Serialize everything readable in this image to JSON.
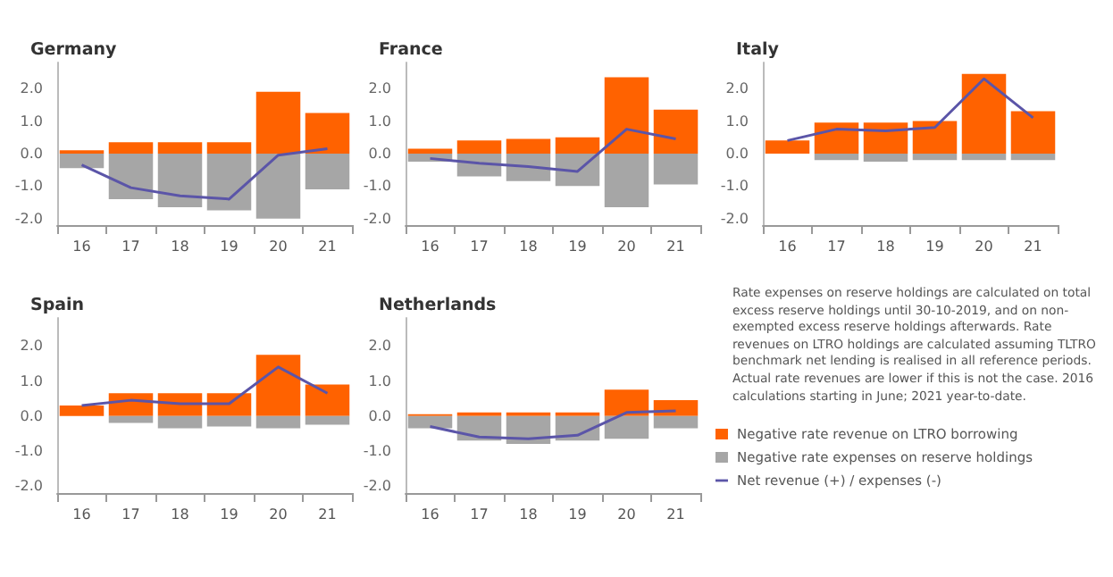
{
  "chart_data": [
    {
      "type": "bar",
      "title": "Germany",
      "stacked": true,
      "categories": [
        "16",
        "17",
        "18",
        "19",
        "20",
        "21"
      ],
      "ylim": [
        -2.2,
        2.8
      ],
      "yticks": [
        {
          "value": -2,
          "label": "-2.0"
        },
        {
          "value": -1,
          "label": "-1.0"
        },
        {
          "value": 0,
          "label": "0.0"
        },
        {
          "value": 1,
          "label": "1.0"
        },
        {
          "value": 2,
          "label": "2.0"
        }
      ],
      "grid": false,
      "legend": false,
      "series": [
        {
          "color": "#ff6200",
          "values": [
            0.1,
            0.35,
            0.35,
            0.35,
            1.9,
            1.25
          ]
        },
        {
          "color": "#a6a6a6",
          "values": [
            -0.45,
            -1.4,
            -1.65,
            -1.75,
            -2.0,
            -1.1
          ]
        },
        {
          "type": "line",
          "color": "#5b55a8",
          "values": [
            -0.35,
            -1.05,
            -1.3,
            -1.4,
            -0.05,
            0.15
          ]
        }
      ]
    },
    {
      "type": "bar",
      "title": "France",
      "stacked": true,
      "categories": [
        "16",
        "17",
        "18",
        "19",
        "20",
        "21"
      ],
      "ylim": [
        -2.2,
        2.8
      ],
      "yticks": [
        {
          "value": -2,
          "label": "-2.0"
        },
        {
          "value": -1,
          "label": "-1.0"
        },
        {
          "value": 0,
          "label": "0.0"
        },
        {
          "value": 1,
          "label": "1.0"
        },
        {
          "value": 2,
          "label": "2.0"
        }
      ],
      "grid": false,
      "legend": false,
      "series": [
        {
          "color": "#ff6200",
          "values": [
            0.15,
            0.4,
            0.45,
            0.5,
            2.35,
            1.35
          ]
        },
        {
          "color": "#a6a6a6",
          "values": [
            -0.25,
            -0.7,
            -0.85,
            -1.0,
            -1.65,
            -0.95
          ]
        },
        {
          "type": "line",
          "color": "#5b55a8",
          "values": [
            -0.15,
            -0.3,
            -0.4,
            -0.55,
            0.75,
            0.45
          ]
        }
      ]
    },
    {
      "type": "bar",
      "title": "Italy",
      "stacked": true,
      "categories": [
        "16",
        "17",
        "18",
        "19",
        "20",
        "21"
      ],
      "ylim": [
        -2.2,
        2.8
      ],
      "yticks": [
        {
          "value": -2,
          "label": "-2.0"
        },
        {
          "value": -1,
          "label": "-1.0"
        },
        {
          "value": 0,
          "label": "0.0"
        },
        {
          "value": 1,
          "label": "1.0"
        },
        {
          "value": 2,
          "label": "2.0"
        }
      ],
      "grid": false,
      "legend": false,
      "series": [
        {
          "color": "#ff6200",
          "values": [
            0.4,
            0.95,
            0.95,
            1.0,
            2.45,
            1.3
          ]
        },
        {
          "color": "#a6a6a6",
          "values": [
            null,
            -0.2,
            -0.25,
            -0.2,
            -0.2,
            -0.2
          ]
        },
        {
          "type": "line",
          "color": "#5b55a8",
          "values": [
            0.4,
            0.75,
            0.7,
            0.8,
            2.3,
            1.1
          ]
        }
      ]
    },
    {
      "type": "bar",
      "title": "Spain",
      "stacked": true,
      "categories": [
        "16",
        "17",
        "18",
        "19",
        "20",
        "21"
      ],
      "ylim": [
        -2.2,
        2.8
      ],
      "yticks": [
        {
          "value": -2,
          "label": "-2.0"
        },
        {
          "value": -1,
          "label": "-1.0"
        },
        {
          "value": 0,
          "label": "0.0"
        },
        {
          "value": 1,
          "label": "1.0"
        },
        {
          "value": 2,
          "label": "2.0"
        }
      ],
      "grid": false,
      "legend": false,
      "series": [
        {
          "color": "#ff6200",
          "values": [
            0.3,
            0.65,
            0.65,
            0.65,
            1.75,
            0.9
          ]
        },
        {
          "color": "#a6a6a6",
          "values": [
            null,
            -0.2,
            -0.35,
            -0.3,
            -0.35,
            -0.25
          ]
        },
        {
          "type": "line",
          "color": "#5b55a8",
          "values": [
            0.3,
            0.45,
            0.35,
            0.35,
            1.4,
            0.65
          ]
        }
      ]
    },
    {
      "type": "bar",
      "title": "Netherlands",
      "stacked": true,
      "categories": [
        "16",
        "17",
        "18",
        "19",
        "20",
        "21"
      ],
      "ylim": [
        -2.2,
        2.8
      ],
      "yticks": [
        {
          "value": -2,
          "label": "-2.0"
        },
        {
          "value": -1,
          "label": "-1.0"
        },
        {
          "value": 0,
          "label": "0.0"
        },
        {
          "value": 1,
          "label": "1.0"
        },
        {
          "value": 2,
          "label": "2.0"
        }
      ],
      "grid": false,
      "legend": "right",
      "series": [
        {
          "name": "Negative rate revenue on LTRO borrowing",
          "color": "#ff6200",
          "values": [
            0.05,
            0.1,
            0.1,
            0.1,
            0.75,
            0.45
          ]
        },
        {
          "name": "Negative rate expenses on reserve holdings",
          "color": "#a6a6a6",
          "values": [
            -0.35,
            -0.7,
            -0.8,
            -0.7,
            -0.65,
            -0.35
          ]
        },
        {
          "name": "Net revenue (+) / expenses (-)",
          "type": "line",
          "color": "#5b55a8",
          "values": [
            -0.3,
            -0.6,
            -0.65,
            -0.55,
            0.1,
            0.15
          ]
        }
      ]
    },
    {
      "type": "other",
      "annotations": [
        "Rate expenses on reserve holdings are calculated on total excess reserve holdings until 30-10-2019, and on non-exempted excess reserve holdings afterwards. Rate revenues on LTRO holdings are calculated assuming TLTRO benchmark net lending is realised in all reference periods. Actual rate revenues are lower if this is not the case. 2016 calculations starting in June; 2021 year-to-date."
      ]
    }
  ]
}
